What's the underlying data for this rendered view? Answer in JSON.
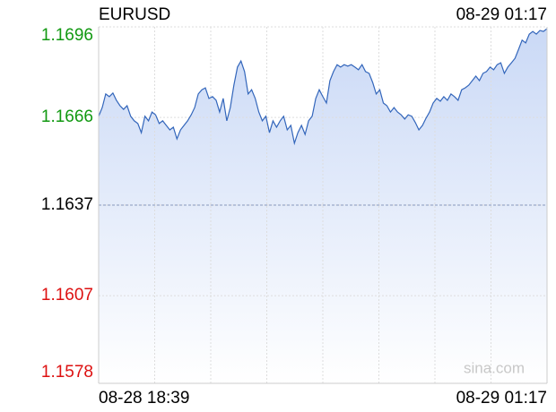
{
  "chart_data": {
    "type": "line",
    "title": "EURUSD",
    "timestamp": "08-29 01:17",
    "watermark": "sina.com",
    "x_labels": [
      "08-28 18:39",
      "08-29 01:17"
    ],
    "color": "#3366bb",
    "fill": "#cfdcf7",
    "ylim": [
      1.1578,
      1.1696
    ],
    "yticks": [
      1.1696,
      1.1666,
      1.1637,
      1.1607,
      1.1578
    ],
    "ytick_colors": [
      "#119911",
      "#119911",
      "#000000",
      "#dd1111",
      "#dd1111"
    ],
    "reference": 1.1637,
    "grid": true,
    "values": [
      1.16664,
      1.16693,
      1.16738,
      1.16729,
      1.16741,
      1.16717,
      1.16699,
      1.16687,
      1.16699,
      1.16664,
      1.16649,
      1.1664,
      1.1661,
      1.16664,
      1.16649,
      1.16678,
      1.16669,
      1.1664,
      1.16649,
      1.16634,
      1.16619,
      1.16628,
      1.16589,
      1.16619,
      1.16634,
      1.16649,
      1.16669,
      1.16693,
      1.16738,
      1.16752,
      1.16758,
      1.16723,
      1.16729,
      1.16717,
      1.16678,
      1.16723,
      1.16649,
      1.16693,
      1.16767,
      1.16827,
      1.16847,
      1.16812,
      1.16738,
      1.16752,
      1.16723,
      1.16678,
      1.16649,
      1.16664,
      1.1661,
      1.16649,
      1.16628,
      1.16649,
      1.16664,
      1.16619,
      1.16634,
      1.16575,
      1.1661,
      1.16634,
      1.16604,
      1.16649,
      1.16664,
      1.16723,
      1.16752,
      1.16729,
      1.16708,
      1.16782,
      1.16812,
      1.16835,
      1.16827,
      1.16835,
      1.1683,
      1.16835,
      1.16827,
      1.16818,
      1.16835,
      1.16812,
      1.16806,
      1.16776,
      1.16738,
      1.16752,
      1.16708,
      1.16699,
      1.16678,
      1.16693,
      1.16678,
      1.16669,
      1.16655,
      1.16669,
      1.16664,
      1.16643,
      1.16619,
      1.16634,
      1.16658,
      1.16678,
      1.16708,
      1.16723,
      1.16714,
      1.16729,
      1.16717,
      1.16738,
      1.16729,
      1.16717,
      1.16752,
      1.16758,
      1.16767,
      1.16782,
      1.16797,
      1.16782,
      1.16806,
      1.16812,
      1.16827,
      1.16818,
      1.16835,
      1.16841,
      1.16806,
      1.16827,
      1.16841,
      1.16856,
      1.16886,
      1.16916,
      1.16907,
      1.16936,
      1.16945,
      1.16936,
      1.16948,
      1.16945,
      1.16954
    ]
  }
}
